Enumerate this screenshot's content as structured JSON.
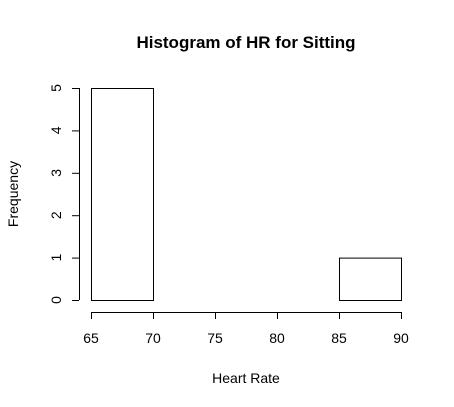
{
  "chart_data": {
    "type": "bar",
    "title": "Histogram of HR for Sitting",
    "xlabel": "Heart Rate",
    "ylabel": "Frequency",
    "bins": [
      {
        "from": 65,
        "to": 70,
        "count": 5
      },
      {
        "from": 70,
        "to": 75,
        "count": 0
      },
      {
        "from": 75,
        "to": 80,
        "count": 0
      },
      {
        "from": 80,
        "to": 85,
        "count": 0
      },
      {
        "from": 85,
        "to": 90,
        "count": 1
      }
    ],
    "xlim": [
      65,
      90
    ],
    "ylim": [
      0,
      5
    ],
    "x_ticks": [
      65,
      70,
      75,
      80,
      85,
      90
    ],
    "y_ticks": [
      0,
      1,
      2,
      3,
      4,
      5
    ],
    "grid": false,
    "legend": "none",
    "colors": {
      "bar_fill": "#ffffff",
      "bar_stroke": "#000000"
    }
  }
}
